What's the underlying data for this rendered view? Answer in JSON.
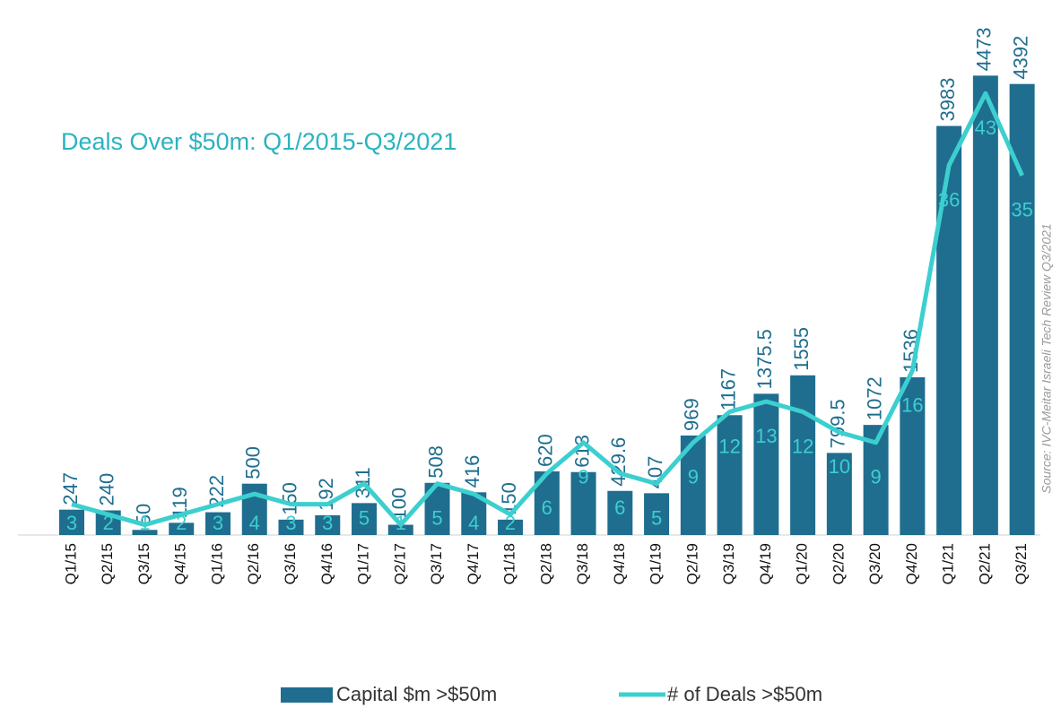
{
  "chart_data": {
    "type": "bar_line",
    "title": "Deals Over $50m: Q1/2015-Q3/2021",
    "source": "Source: IVC-Meitar Israeli Tech Review Q3/2021",
    "categories": [
      "Q1/15",
      "Q2/15",
      "Q3/15",
      "Q4/15",
      "Q1/16",
      "Q2/16",
      "Q3/16",
      "Q4/16",
      "Q1/17",
      "Q2/17",
      "Q3/17",
      "Q4/17",
      "Q1/18",
      "Q2/18",
      "Q3/18",
      "Q4/18",
      "Q1/19",
      "Q2/19",
      "Q3/19",
      "Q4/19",
      "Q1/20",
      "Q2/20",
      "Q3/20",
      "Q4/20",
      "Q1/21",
      "Q2/21",
      "Q3/21"
    ],
    "series": [
      {
        "name": "Capital $m >$50m",
        "color": "#1f6e8f",
        "kind": "bar",
        "values": [
          247,
          240,
          50,
          119,
          222,
          500,
          150,
          192,
          311,
          100,
          508,
          416,
          150,
          620,
          613,
          429.6,
          407,
          969,
          1167,
          1375.5,
          1555,
          799.5,
          1072,
          1536,
          3983,
          4473,
          4392
        ]
      },
      {
        "name": "# of Deals >$50m",
        "color": "#3ccfcf",
        "kind": "line",
        "axis": "y2",
        "values": [
          3,
          2,
          1,
          2,
          3,
          4,
          3,
          3,
          5,
          1,
          5,
          4,
          2,
          6,
          9,
          6,
          5,
          9,
          12,
          13,
          12,
          10,
          9,
          16,
          36,
          43,
          35
        ]
      }
    ],
    "ylim": [
      0,
      5000
    ],
    "y2lim": [
      0,
      50
    ]
  }
}
